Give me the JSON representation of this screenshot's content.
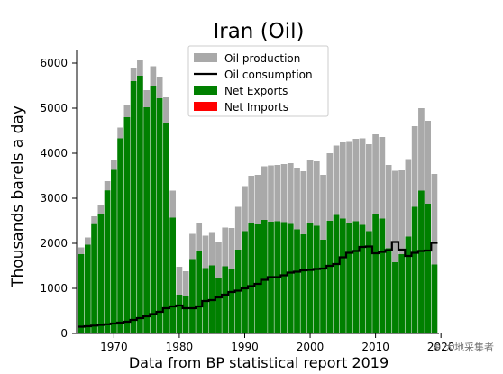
{
  "chart_data": {
    "type": "bar",
    "title": "Iran (Oil)",
    "xlabel": "Data from BP statistical report 2019",
    "ylabel": "Thousands barels a day",
    "xlim": [
      1964.3,
      2019.7
    ],
    "ylim": [
      0,
      6300
    ],
    "x_ticks": [
      1970,
      1980,
      1990,
      2000,
      2010,
      2020
    ],
    "y_ticks": [
      0,
      1000,
      2000,
      3000,
      4000,
      5000,
      6000
    ],
    "y_tick_labels": [
      "0",
      "1000",
      "2000",
      "3000",
      "4000",
      "5000",
      "6000"
    ],
    "x_tick_labels": [
      "1970",
      "1980",
      "1990",
      "2000",
      "2010",
      "2020"
    ],
    "legend_position": "top-center",
    "legend": [
      {
        "key": "production",
        "label": "Oil production",
        "color": "#a9a9a9",
        "marker": "patch"
      },
      {
        "key": "consumption",
        "label": "Oil consumption",
        "color": "#000000",
        "marker": "line"
      },
      {
        "key": "exports",
        "label": "Net Exports",
        "color": "#008000",
        "marker": "patch"
      },
      {
        "key": "imports",
        "label": "Net Imports",
        "color": "#ff0000",
        "marker": "patch"
      }
    ],
    "years": [
      1965,
      1966,
      1967,
      1968,
      1969,
      1970,
      1971,
      1972,
      1973,
      1974,
      1975,
      1976,
      1977,
      1978,
      1979,
      1980,
      1981,
      1982,
      1983,
      1984,
      1985,
      1986,
      1987,
      1988,
      1989,
      1990,
      1991,
      1992,
      1993,
      1994,
      1995,
      1996,
      1997,
      1998,
      1999,
      2000,
      2001,
      2002,
      2003,
      2004,
      2005,
      2006,
      2007,
      2008,
      2009,
      2010,
      2011,
      2012,
      2013,
      2014,
      2015,
      2016,
      2017,
      2018,
      2019
    ],
    "series": [
      {
        "name": "Oil production",
        "color": "#a9a9a9",
        "values": [
          1910,
          2130,
          2600,
          2840,
          3380,
          3850,
          4570,
          5060,
          5900,
          6060,
          5400,
          5930,
          5700,
          5240,
          3170,
          1480,
          1380,
          2210,
          2440,
          2170,
          2250,
          2040,
          2350,
          2340,
          2810,
          3270,
          3500,
          3520,
          3710,
          3730,
          3740,
          3760,
          3780,
          3680,
          3600,
          3860,
          3820,
          3520,
          4000,
          4170,
          4240,
          4250,
          4320,
          4330,
          4200,
          4420,
          4360,
          3740,
          3610,
          3620,
          3870,
          4600,
          5000,
          4720,
          3540
        ]
      },
      {
        "name": "Oil consumption",
        "color": "#000000",
        "values": [
          150,
          160,
          175,
          190,
          205,
          220,
          240,
          260,
          300,
          340,
          380,
          430,
          480,
          560,
          600,
          620,
          560,
          560,
          600,
          720,
          740,
          800,
          860,
          920,
          950,
          1000,
          1050,
          1100,
          1190,
          1250,
          1250,
          1290,
          1350,
          1370,
          1400,
          1410,
          1430,
          1440,
          1500,
          1540,
          1690,
          1790,
          1830,
          1920,
          1930,
          1780,
          1810,
          1850,
          2030,
          1860,
          1720,
          1790,
          1830,
          1840,
          2010
        ]
      },
      {
        "name": "Net Exports",
        "color": "#008000",
        "values": [
          1760,
          1970,
          2425,
          2650,
          3175,
          3630,
          4330,
          4800,
          5600,
          5720,
          5020,
          5500,
          5220,
          4680,
          2570,
          860,
          820,
          1650,
          1840,
          1450,
          1510,
          1240,
          1490,
          1420,
          1860,
          2270,
          2450,
          2420,
          2520,
          2480,
          2490,
          2470,
          2430,
          2310,
          2200,
          2450,
          2390,
          2080,
          2500,
          2630,
          2550,
          2460,
          2490,
          2410,
          2270,
          2640,
          2550,
          1890,
          1580,
          1760,
          2150,
          2810,
          3170,
          2880,
          1530
        ]
      }
    ],
    "net_imports": []
  }
}
